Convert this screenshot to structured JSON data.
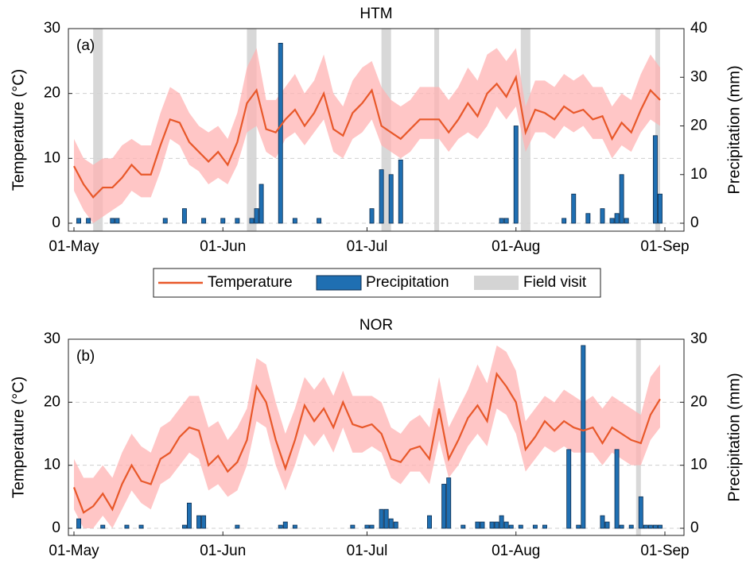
{
  "chart_data": [
    {
      "type": "line",
      "title": "HTM",
      "label": "(a)",
      "ylabel": "Temperature (°C)",
      "y2label": "Precipitation (mm)",
      "xlim": [
        "01-May",
        "01-Sep"
      ],
      "xticks": [
        "01-May",
        "01-Jun",
        "01-Jul",
        "01-Aug",
        "01-Sep"
      ],
      "ylim": [
        0,
        30
      ],
      "yticks": [
        0,
        10,
        20,
        30
      ],
      "y2lim": [
        0,
        40
      ],
      "y2ticks": [
        0,
        10,
        20,
        30,
        40
      ],
      "grid": true,
      "legend": "bottom",
      "series": [
        {
          "name": "Temperature",
          "type": "line",
          "color": "#e8582a",
          "band_color": "#ffb3b3",
          "x": [
            "01-May",
            "03-May",
            "05-May",
            "07-May",
            "09-May",
            "11-May",
            "13-May",
            "15-May",
            "17-May",
            "19-May",
            "21-May",
            "23-May",
            "25-May",
            "27-May",
            "29-May",
            "31-May",
            "02-Jun",
            "04-Jun",
            "06-Jun",
            "08-Jun",
            "10-Jun",
            "12-Jun",
            "14-Jun",
            "16-Jun",
            "18-Jun",
            "20-Jun",
            "22-Jun",
            "24-Jun",
            "26-Jun",
            "28-Jun",
            "30-Jun",
            "02-Jul",
            "04-Jul",
            "06-Jul",
            "08-Jul",
            "10-Jul",
            "12-Jul",
            "14-Jul",
            "16-Jul",
            "18-Jul",
            "20-Jul",
            "22-Jul",
            "24-Jul",
            "26-Jul",
            "28-Jul",
            "30-Jul",
            "01-Aug",
            "03-Aug",
            "05-Aug",
            "07-Aug",
            "09-Aug",
            "11-Aug",
            "13-Aug",
            "15-Aug",
            "17-Aug",
            "19-Aug",
            "21-Aug",
            "23-Aug",
            "25-Aug",
            "27-Aug",
            "29-Aug",
            "31-Aug"
          ],
          "values": [
            8.8,
            6,
            4,
            5.5,
            5.5,
            7,
            9,
            7.5,
            7.5,
            12,
            16,
            15.5,
            12.5,
            11,
            9.5,
            11,
            9,
            12.5,
            18.5,
            20.5,
            14.5,
            14,
            16,
            17.5,
            15,
            17,
            20,
            14.5,
            13.5,
            17,
            18.5,
            20.5,
            15,
            14,
            13,
            14.5,
            16,
            16,
            16,
            14,
            16,
            18.5,
            16.5,
            20,
            21.5,
            19.5,
            22.5,
            14,
            17.5,
            17,
            16,
            18,
            17,
            17.5,
            16,
            16.5,
            13,
            15.5,
            14,
            17.5,
            20.5,
            19
          ],
          "lower": [
            5,
            2,
            0,
            1,
            2,
            3,
            5,
            4,
            4,
            8,
            13,
            12,
            9,
            8,
            6,
            7,
            6,
            9,
            14,
            15,
            11,
            10,
            13,
            14,
            12,
            14,
            16,
            11,
            10,
            13,
            14,
            16,
            12,
            11,
            10,
            11,
            13,
            13,
            13,
            11,
            13,
            14,
            13,
            15,
            18,
            16,
            18,
            11,
            14,
            14,
            13,
            15,
            14,
            15,
            13,
            13,
            10,
            12,
            11,
            14,
            16,
            15
          ],
          "upper": [
            13,
            10,
            9,
            10,
            10,
            12,
            13,
            12,
            12,
            17,
            21,
            20,
            17,
            15,
            14,
            15,
            13,
            17,
            24,
            27,
            19,
            19,
            21,
            23,
            20,
            22,
            26,
            20,
            18,
            22,
            24,
            25,
            21,
            19,
            18,
            19,
            21,
            21,
            21,
            19,
            21,
            24,
            22,
            26,
            27,
            25,
            27,
            18,
            22,
            22,
            21,
            23,
            22,
            23,
            21,
            21,
            18,
            20,
            19,
            23,
            26,
            24
          ]
        },
        {
          "name": "Precipitation",
          "type": "bar",
          "axis": "y2",
          "color": "#1f6fb2",
          "x": [
            "02-May",
            "04-May",
            "09-May",
            "10-May",
            "20-May",
            "24-May",
            "28-May",
            "01-Jun",
            "04-Jun",
            "07-Jun",
            "08-Jun",
            "09-Jun",
            "13-Jun",
            "16-Jun",
            "21-Jun",
            "02-Jul",
            "04-Jul",
            "06-Jul",
            "08-Jul",
            "29-Jul",
            "30-Jul",
            "01-Aug",
            "11-Aug",
            "13-Aug",
            "16-Aug",
            "19-Aug",
            "21-Aug",
            "22-Aug",
            "23-Aug",
            "24-Aug",
            "30-Aug",
            "31-Aug"
          ],
          "values": [
            1,
            1,
            1,
            1,
            1,
            3,
            1,
            1,
            1,
            1,
            3,
            8,
            37,
            1,
            1,
            3,
            11,
            10,
            13,
            1,
            1,
            20,
            1,
            6,
            2,
            3,
            1,
            2,
            10,
            1,
            18,
            6
          ]
        },
        {
          "name": "Field visit",
          "type": "span",
          "color": "#d4d4d4",
          "spans": [
            [
              "05-May",
              "07-May"
            ],
            [
              "06-Jun",
              "08-Jun"
            ],
            [
              "04-Jul",
              "06-Jul"
            ],
            [
              "15-Jul",
              "16-Jul"
            ],
            [
              "02-Aug",
              "04-Aug"
            ],
            [
              "30-Aug",
              "31-Aug"
            ]
          ]
        }
      ]
    },
    {
      "type": "line",
      "title": "NOR",
      "label": "(b)",
      "ylabel": "Temperature (°C)",
      "y2label": "Precipitation (mm)",
      "xlim": [
        "01-May",
        "01-Sep"
      ],
      "xticks": [
        "01-May",
        "01-Jun",
        "01-Jul",
        "01-Aug",
        "01-Sep"
      ],
      "ylim": [
        0,
        30
      ],
      "yticks": [
        0,
        10,
        20,
        30
      ],
      "y2lim": [
        0,
        30
      ],
      "y2ticks": [
        0,
        10,
        20,
        30
      ],
      "grid": true,
      "series": [
        {
          "type": "line",
          "color": "#e8582a",
          "band_color": "#ffb3b3",
          "x": [
            "01-May",
            "03-May",
            "05-May",
            "07-May",
            "09-May",
            "11-May",
            "13-May",
            "15-May",
            "17-May",
            "19-May",
            "21-May",
            "23-May",
            "25-May",
            "27-May",
            "29-May",
            "31-May",
            "02-Jun",
            "04-Jun",
            "06-Jun",
            "08-Jun",
            "10-Jun",
            "12-Jun",
            "14-Jun",
            "16-Jun",
            "18-Jun",
            "20-Jun",
            "22-Jun",
            "24-Jun",
            "26-Jun",
            "28-Jun",
            "30-Jun",
            "02-Jul",
            "04-Jul",
            "06-Jul",
            "08-Jul",
            "10-Jul",
            "12-Jul",
            "14-Jul",
            "16-Jul",
            "18-Jul",
            "20-Jul",
            "22-Jul",
            "24-Jul",
            "26-Jul",
            "28-Jul",
            "30-Jul",
            "01-Aug",
            "03-Aug",
            "05-Aug",
            "07-Aug",
            "09-Aug",
            "11-Aug",
            "13-Aug",
            "15-Aug",
            "17-Aug",
            "19-Aug",
            "21-Aug",
            "23-Aug",
            "25-Aug",
            "27-Aug",
            "29-Aug",
            "31-Aug"
          ],
          "values": [
            6.5,
            2.5,
            3.5,
            5.5,
            3,
            7,
            10,
            7.5,
            7,
            11,
            12,
            14.5,
            16,
            15.5,
            10,
            11.5,
            9,
            10.5,
            14,
            22.5,
            20,
            14,
            9.5,
            14,
            19.5,
            17,
            19,
            16,
            20,
            16.5,
            16,
            16.5,
            15,
            11,
            10.5,
            12.5,
            13,
            11,
            19,
            11,
            14,
            17.5,
            19.5,
            17,
            24.5,
            22.5,
            20,
            12.5,
            14.5,
            17,
            15.5,
            17,
            16,
            15.5,
            16,
            13.5,
            16,
            15,
            14,
            13.5,
            18,
            20.5
          ],
          "lower": [
            3,
            0,
            0,
            2,
            0,
            3,
            6,
            4,
            3,
            7,
            8,
            10,
            12,
            11,
            6,
            7,
            5,
            6,
            10,
            17,
            16,
            10,
            6,
            10,
            15,
            13,
            15,
            12,
            16,
            12,
            12,
            13,
            12,
            8,
            7,
            9,
            9,
            7,
            14,
            8,
            10,
            13,
            15,
            13,
            19,
            18,
            15,
            9,
            11,
            13,
            12,
            13,
            12,
            12,
            12,
            10,
            12,
            11,
            10,
            10,
            14,
            16
          ],
          "upper": [
            11,
            8,
            8,
            10,
            8,
            12,
            15,
            13,
            12,
            16,
            17,
            19,
            21,
            21,
            16,
            17,
            14,
            16,
            19,
            27,
            26,
            20,
            15,
            19,
            24,
            22,
            24,
            21,
            25,
            21,
            21,
            21,
            20,
            16,
            15,
            17,
            18,
            16,
            24,
            16,
            19,
            22,
            26,
            23,
            29,
            28,
            25,
            17,
            19,
            21,
            20,
            22,
            21,
            20,
            21,
            19,
            21,
            20,
            19,
            18,
            24,
            26
          ]
        },
        {
          "type": "bar",
          "axis": "y2",
          "color": "#1f6fb2",
          "x": [
            "02-May",
            "07-May",
            "12-May",
            "15-May",
            "24-May",
            "25-May",
            "27-May",
            "28-May",
            "04-Jun",
            "13-Jun",
            "14-Jun",
            "16-Jun",
            "28-Jun",
            "01-Jul",
            "02-Jul",
            "04-Jul",
            "05-Jul",
            "06-Jul",
            "07-Jul",
            "14-Jul",
            "17-Jul",
            "18-Jul",
            "21-Jul",
            "24-Jul",
            "25-Jul",
            "27-Jul",
            "28-Jul",
            "29-Jul",
            "30-Jul",
            "31-Jul",
            "02-Aug",
            "05-Aug",
            "07-Aug",
            "12-Aug",
            "14-Aug",
            "15-Aug",
            "19-Aug",
            "20-Aug",
            "22-Aug",
            "23-Aug",
            "25-Aug",
            "27-Aug",
            "28-Aug",
            "29-Aug",
            "30-Aug",
            "31-Aug"
          ],
          "values": [
            1.5,
            0.5,
            0.5,
            0.5,
            0.5,
            4,
            2,
            2,
            0.5,
            0.5,
            1,
            0.5,
            0.5,
            0.5,
            0.5,
            3,
            3,
            1.5,
            1,
            2,
            7,
            8,
            0.5,
            1,
            1,
            1,
            1,
            2,
            1,
            0.5,
            0.5,
            0.5,
            0.5,
            12.5,
            0.5,
            29,
            2,
            1,
            12.5,
            0.5,
            0.5,
            5,
            0.5,
            0.5,
            0.5,
            0.5
          ]
        },
        {
          "type": "span",
          "color": "#d4d4d4",
          "spans": [
            [
              "26-Aug",
              "27-Aug"
            ]
          ]
        }
      ]
    }
  ]
}
